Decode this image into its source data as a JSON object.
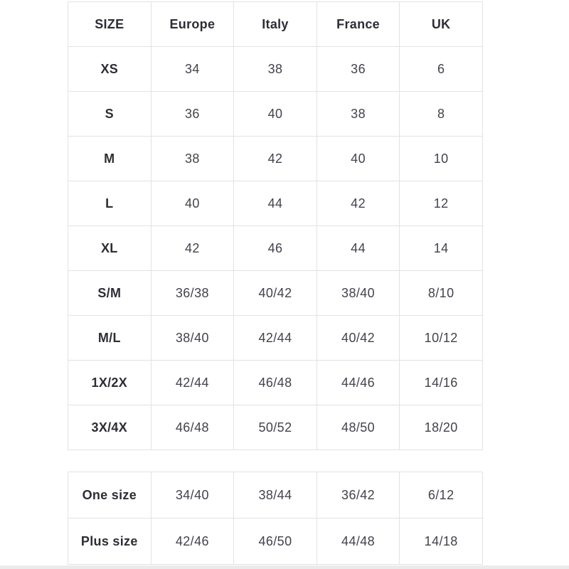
{
  "page": {
    "background_color": "#ffffff",
    "border_color": "#e2e2e2",
    "header_text_color": "#2d2d35",
    "value_text_color": "#42434c",
    "bottom_strip_color": "#ebebeb"
  },
  "size_table": {
    "columns": [
      "SIZE",
      "Europe",
      "Italy",
      "France",
      "UK"
    ],
    "rows": [
      {
        "size": "XS",
        "values": [
          "34",
          "38",
          "36",
          "6"
        ]
      },
      {
        "size": "S",
        "values": [
          "36",
          "40",
          "38",
          "8"
        ]
      },
      {
        "size": "M",
        "values": [
          "38",
          "42",
          "40",
          "10"
        ]
      },
      {
        "size": "L",
        "values": [
          "40",
          "44",
          "42",
          "12"
        ]
      },
      {
        "size": "XL",
        "values": [
          "42",
          "46",
          "44",
          "14"
        ]
      },
      {
        "size": "S/M",
        "values": [
          "36/38",
          "40/42",
          "38/40",
          "8/10"
        ]
      },
      {
        "size": "M/L",
        "values": [
          "38/40",
          "42/44",
          "40/42",
          "10/12"
        ]
      },
      {
        "size": "1X/2X",
        "values": [
          "42/44",
          "46/48",
          "44/46",
          "14/16"
        ]
      },
      {
        "size": "3X/4X",
        "values": [
          "46/48",
          "50/52",
          "48/50",
          "18/20"
        ]
      }
    ]
  },
  "special_sizes_table": {
    "rows": [
      {
        "size": "One size",
        "values": [
          "34/40",
          "38/44",
          "36/42",
          "6/12"
        ]
      },
      {
        "size": "Plus size",
        "values": [
          "42/46",
          "46/50",
          "44/48",
          "14/18"
        ]
      }
    ]
  }
}
